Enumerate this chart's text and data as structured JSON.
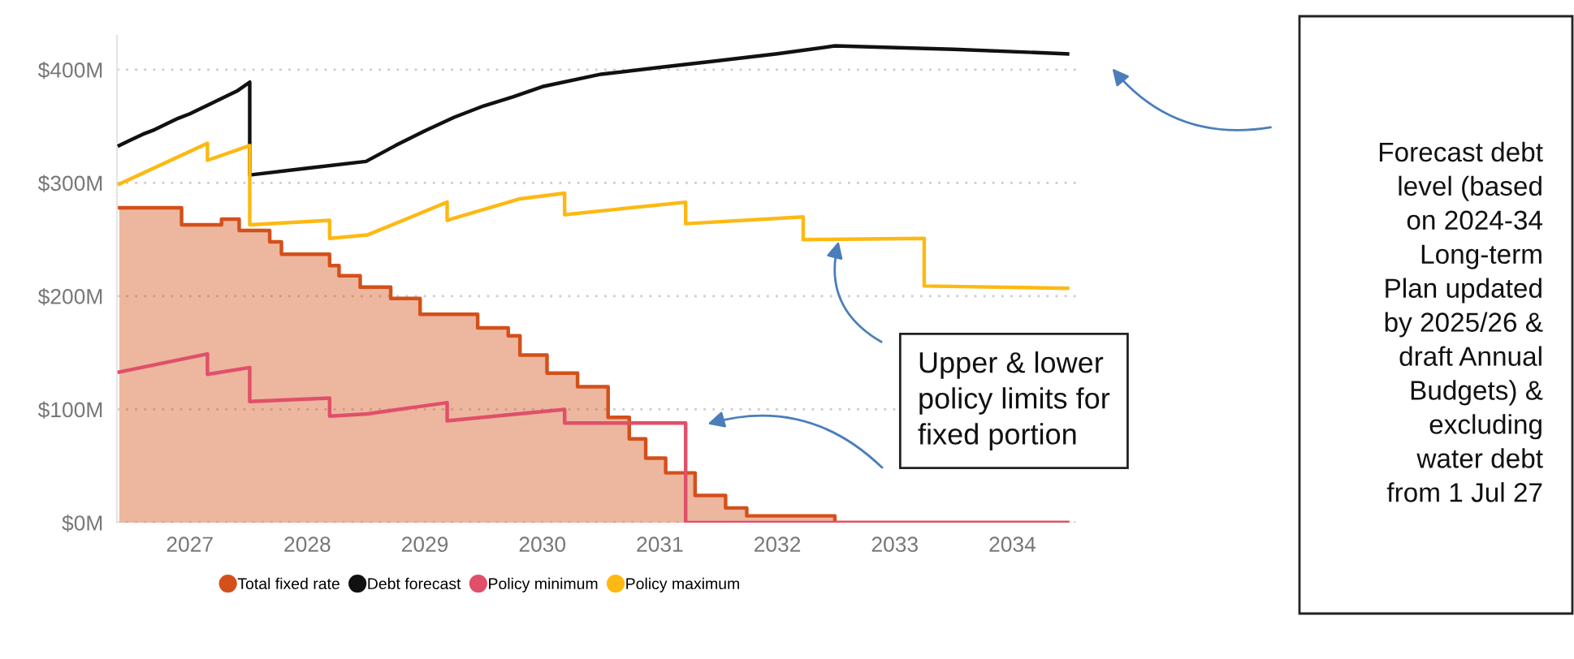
{
  "chart_data": {
    "type": "line",
    "xlim": [
      2026.38,
      2034.55
    ],
    "xticks": [
      2027,
      2028,
      2029,
      2030,
      2031,
      2032,
      2033,
      2034
    ],
    "ylim": [
      0,
      430
    ],
    "yticks": [
      {
        "value": 0,
        "label": "$0M"
      },
      {
        "value": 100,
        "label": "$100M"
      },
      {
        "value": 200,
        "label": "$200M"
      },
      {
        "value": 300,
        "label": "$300M"
      },
      {
        "value": 400,
        "label": "$400M"
      }
    ],
    "grid": "y",
    "legend": "bottom",
    "series": [
      {
        "name": "Total fixed rate",
        "type": "area",
        "color": "#d4501a",
        "x": [
          2026.4,
          2026.93,
          2026.93,
          2027.27,
          2027.27,
          2027.42,
          2027.42,
          2027.68,
          2027.68,
          2027.78,
          2027.78,
          2028.19,
          2028.19,
          2028.27,
          2028.27,
          2028.45,
          2028.45,
          2028.71,
          2028.71,
          2028.96,
          2028.96,
          2029.45,
          2029.45,
          2029.71,
          2029.71,
          2029.81,
          2029.81,
          2030.04,
          2030.04,
          2030.3,
          2030.3,
          2030.56,
          2030.56,
          2030.74,
          2030.74,
          2030.88,
          2030.88,
          2031.05,
          2031.05,
          2031.3,
          2031.3,
          2031.56,
          2031.56,
          2031.74,
          2031.74,
          2032.49,
          2032.49,
          2034.47
        ],
        "values": [
          278,
          278,
          263,
          263,
          268,
          268,
          258,
          258,
          248,
          248,
          237,
          237,
          227,
          227,
          218,
          218,
          208,
          208,
          198,
          198,
          184,
          184,
          172,
          172,
          165,
          165,
          148,
          148,
          132,
          132,
          120,
          120,
          93,
          93,
          74,
          74,
          57,
          57,
          44,
          44,
          24,
          24,
          13,
          13,
          6,
          6,
          0,
          0
        ]
      },
      {
        "name": "Debt forecast",
        "color": "#111111",
        "x": [
          2026.4,
          2026.5,
          2026.6,
          2026.7,
          2026.8,
          2026.9,
          2027.0,
          2027.1,
          2027.2,
          2027.3,
          2027.4,
          2027.51,
          2027.51,
          2028.0,
          2028.5,
          2028.75,
          2029.0,
          2029.25,
          2029.5,
          2029.75,
          2030.0,
          2030.5,
          2031.0,
          2031.5,
          2032.0,
          2032.49,
          2033.5,
          2034.47
        ],
        "values": [
          333,
          338,
          343,
          347,
          352,
          357,
          361,
          366,
          371,
          376,
          381,
          389,
          307,
          313,
          319,
          333,
          346,
          358,
          368,
          376,
          385,
          396,
          402,
          408,
          414,
          421,
          418,
          414
        ]
      },
      {
        "name": "Policy minimum",
        "color": "#e0506a",
        "x": [
          2026.4,
          2027.15,
          2027.15,
          2027.51,
          2027.51,
          2028.19,
          2028.19,
          2028.51,
          2029.19,
          2029.19,
          2030.19,
          2030.19,
          2031.22,
          2031.22,
          2034.47
        ],
        "values": [
          133,
          149,
          131,
          137,
          107,
          110,
          94,
          96,
          106,
          90,
          100,
          88,
          88,
          0,
          0
        ]
      },
      {
        "name": "Policy maximum",
        "color": "#fdb913",
        "x": [
          2026.4,
          2027.15,
          2027.15,
          2027.51,
          2027.51,
          2028.19,
          2028.19,
          2028.51,
          2029.19,
          2029.19,
          2029.81,
          2030.19,
          2030.19,
          2031.22,
          2031.22,
          2032.22,
          2032.22,
          2033.25,
          2033.25,
          2034.47
        ],
        "values": [
          299,
          335,
          320,
          333,
          263,
          267,
          251,
          254,
          283,
          267,
          286,
          291,
          272,
          283,
          264,
          270,
          250,
          251,
          209,
          207
        ]
      }
    ],
    "annotations": [
      "Forecast debt level (based on 2024-34 Long-term Plan updated by 2025/26 & draft Annual Budgets) & excluding water debt from 1 Jul 27",
      "Upper & lower policy limits for fixed portion"
    ]
  }
}
